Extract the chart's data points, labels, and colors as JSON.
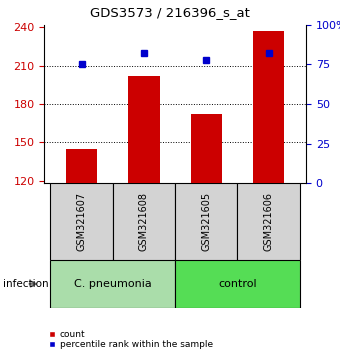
{
  "title": "GDS3573 / 216396_s_at",
  "samples": [
    "GSM321607",
    "GSM321608",
    "GSM321605",
    "GSM321606"
  ],
  "counts": [
    145,
    202,
    172,
    237
  ],
  "percentiles": [
    75,
    82,
    78,
    82
  ],
  "ylim_left": [
    118,
    242
  ],
  "ylim_right": [
    0,
    100
  ],
  "yticks_left": [
    120,
    150,
    180,
    210,
    240
  ],
  "yticks_right": [
    0,
    25,
    50,
    75,
    100
  ],
  "ytick_labels_right": [
    "0",
    "25",
    "50",
    "75",
    "100%"
  ],
  "bar_color": "#cc0000",
  "percentile_color": "#0000cc",
  "group_info": [
    {
      "label": "C. pneumonia",
      "color": "#aaddaa",
      "start": 0,
      "end": 2
    },
    {
      "label": "control",
      "color": "#55dd55",
      "start": 2,
      "end": 4
    }
  ],
  "factor_label": "infection",
  "dotted_line_values": [
    150,
    180,
    210
  ],
  "bar_color_legend": "#cc0000",
  "pct_color_legend": "#0000cc",
  "label_count": "count",
  "label_pct": "percentile rank within the sample",
  "bar_width": 0.5,
  "sample_box_color": "#d3d3d3"
}
